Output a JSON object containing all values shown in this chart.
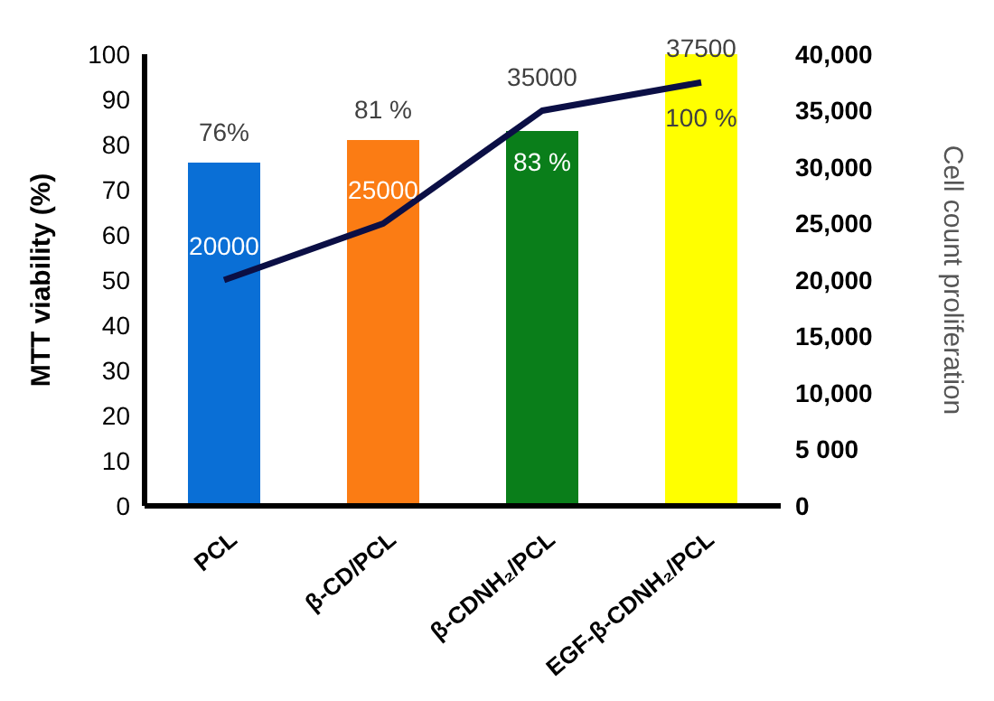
{
  "chart_data": {
    "type": "bar",
    "ylabel": "MTT viability (%)",
    "y2label": "Cell count  proliferation",
    "categories": [
      "PCL",
      "β-CD/PCL",
      "β-CDNH₂/PCL",
      "EGF-β-CDNH₂/PCL"
    ],
    "series": [
      {
        "colors": [
          "#0a6fd6",
          "#fb7c14",
          "#0a7e1a",
          "#ffff00"
        ],
        "values": [
          76,
          81,
          83,
          100
        ],
        "value_labels": [
          "76%",
          "81 %",
          "83 %",
          "100 %"
        ]
      },
      {
        "type": "line",
        "axis": "y2",
        "color": "#0b0f45",
        "values": [
          20000,
          25000,
          35000,
          37500
        ],
        "value_labels": [
          "20000",
          "25000",
          "35000",
          "37500"
        ],
        "marker": "none",
        "line_style": "solid"
      }
    ],
    "ylim": [
      0,
      100
    ],
    "yticks": [
      0,
      10,
      20,
      30,
      40,
      50,
      60,
      70,
      80,
      90,
      100
    ],
    "y2lim": [
      0,
      40000
    ],
    "y2ticks": [
      0,
      {
        "value": 5000,
        "label": "5 000"
      },
      {
        "value": 10000,
        "label": "10,000"
      },
      {
        "value": 15000,
        "label": "15,000"
      },
      {
        "value": 20000,
        "label": "20,000"
      },
      {
        "value": 25000,
        "label": "25,000"
      },
      {
        "value": 30000,
        "label": "30,000"
      },
      {
        "value": 35000,
        "label": "35,000"
      },
      {
        "value": 40000,
        "label": "40,000"
      }
    ],
    "grid": false,
    "legend": false
  }
}
